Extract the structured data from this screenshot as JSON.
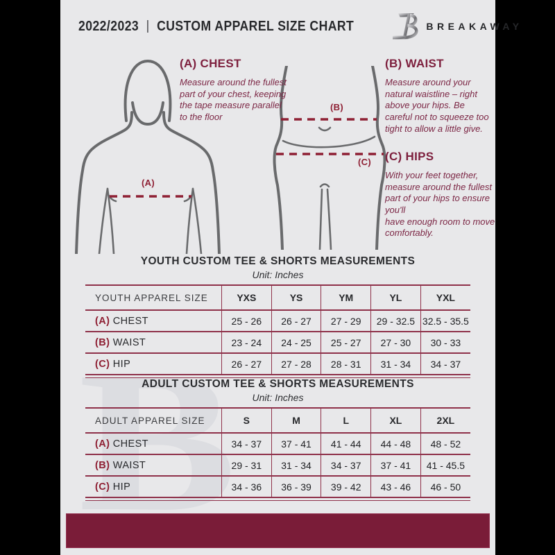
{
  "header": {
    "year": "2022/2023",
    "separator": "|",
    "title": "CUSTOM APPAREL SIZE CHART",
    "brand": "BREAKAWAY",
    "logo_icon": "breakaway-b-logo"
  },
  "measurement_guide": {
    "chest": {
      "heading": "(A) CHEST",
      "body": "Measure around the fullest part of your chest, keeping the tape measure parallel to the floor"
    },
    "waist": {
      "heading": "(B) WAIST",
      "body": "Measure around your natural waistline – right above your hips. Be careful not to squeeze too tight to allow a little give."
    },
    "hips": {
      "heading": "(C) HIPS",
      "body": "With your feet together, measure around the fullest part of your hips to ensure you'll\nhave enough room to move comfortably."
    },
    "markers": {
      "chest": "(A)",
      "waist": "(B)",
      "hips": "(C)"
    }
  },
  "youth_table": {
    "title": "YOUTH CUSTOM TEE & SHORTS MEASUREMENTS",
    "subtitle": "Unit: Inches",
    "header": [
      "YOUTH APPAREL SIZE",
      "YXS",
      "YS",
      "YM",
      "YL",
      "YXL"
    ],
    "rows": [
      {
        "marker": "(A)",
        "label": "CHEST",
        "values": [
          "25 - 26",
          "26 - 27",
          "27 - 29",
          "29 - 32.5",
          "32.5 - 35.5"
        ]
      },
      {
        "marker": "(B)",
        "label": "WAIST",
        "values": [
          "23 - 24",
          "24 - 25",
          "25 - 27",
          "27 - 30",
          "30 - 33"
        ]
      },
      {
        "marker": "(C)",
        "label": "HIP",
        "values": [
          "26 - 27",
          "27 - 28",
          "28 - 31",
          "31 - 34",
          "34 - 37"
        ]
      }
    ]
  },
  "adult_table": {
    "title": "ADULT CUSTOM TEE & SHORTS MEASUREMENTS",
    "subtitle": "Unit: Inches",
    "header": [
      "ADULT APPAREL SIZE",
      "S",
      "M",
      "L",
      "XL",
      "2XL"
    ],
    "rows": [
      {
        "marker": "(A)",
        "label": "CHEST",
        "values": [
          "34 - 37",
          "37 - 41",
          "41 - 44",
          "44 - 48",
          "48 - 52"
        ]
      },
      {
        "marker": "(B)",
        "label": "WAIST",
        "values": [
          "29 - 31",
          "31 - 34",
          "34 - 37",
          "37 - 41",
          "41 - 45.5"
        ]
      },
      {
        "marker": "(C)",
        "label": "HIP",
        "values": [
          "34 - 36",
          "36 - 39",
          "39 - 42",
          "43 - 46",
          "46 - 50"
        ]
      }
    ]
  },
  "watermark_letter": "B",
  "colors": {
    "page_bg": "#e8e8ea",
    "canvas_bg": "#000000",
    "maroon_heading": "#7d1f3d",
    "maroon_body": "#7c2745",
    "dashed_line": "#8e1f33",
    "table_border": "#8e3049",
    "footer_bar": "#7a1c38",
    "text_dark": "#2f3033",
    "silhouette_gray": "#696a6c"
  }
}
